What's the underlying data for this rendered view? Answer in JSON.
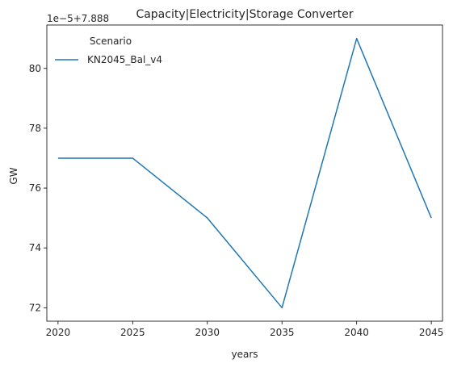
{
  "chart_data": {
    "type": "line",
    "title": "Capacity|Electricity|Storage Converter",
    "xlabel": "years",
    "ylabel": "GW",
    "y_offset_label": "1e−5+7.888",
    "x": [
      2020,
      2025,
      2030,
      2035,
      2040,
      2045
    ],
    "x_ticks": [
      "2020",
      "2025",
      "2030",
      "2035",
      "2040",
      "2045"
    ],
    "y_ticks": [
      "72",
      "74",
      "76",
      "78",
      "80"
    ],
    "y_tick_values": [
      72,
      74,
      76,
      78,
      80
    ],
    "xlim": [
      2019.25,
      2045.75
    ],
    "ylim": [
      71.55,
      81.45
    ],
    "grid": false,
    "legend": {
      "title": "Scenario",
      "position": "top-left"
    },
    "series": [
      {
        "name": "KN2045_Bal_v4",
        "color": "#1f77b4",
        "values": [
          77,
          77,
          75,
          72,
          81,
          75
        ]
      }
    ]
  }
}
